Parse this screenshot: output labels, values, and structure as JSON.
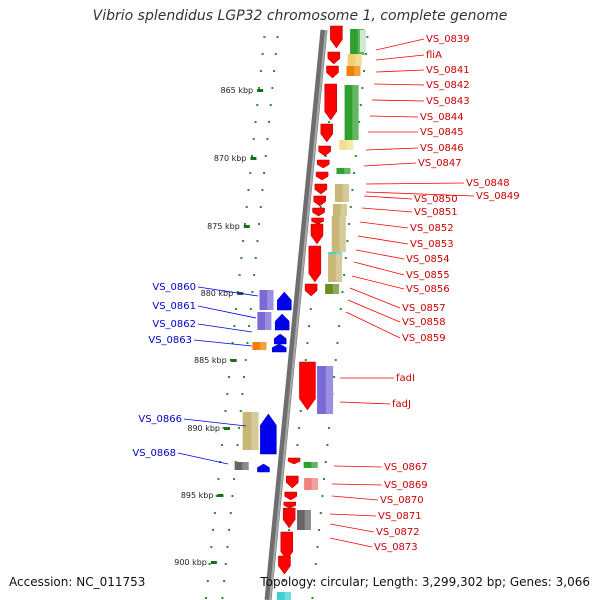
{
  "title": "Vibrio splendidus LGP32 chromosome 1, complete genome",
  "accession": "Accession: NC_011753",
  "topology": "Topology: circular; Length: 3,299,302 bp; Genes: 3,066",
  "ruler": [
    "865 kbp",
    "870 kbp",
    "875 kbp",
    "880 kbp",
    "885 kbp",
    "890 kbp",
    "895 kbp",
    "900 kbp"
  ],
  "right_labels": [
    "VS_0839",
    "fliA",
    "VS_0841",
    "VS_0842",
    "VS_0843",
    "VS_0844",
    "VS_0845",
    "VS_0846",
    "VS_0847",
    "VS_0848",
    "VS_0849",
    "VS_0850",
    "VS_0851",
    "VS_0852",
    "VS_0853",
    "VS_0854",
    "VS_0855",
    "VS_0856",
    "VS_0857",
    "VS_0858",
    "VS_0859",
    "fadI",
    "fadJ",
    "VS_0867",
    "VS_0869",
    "VS_0870",
    "VS_0871",
    "VS_0872",
    "VS_0873"
  ],
  "left_labels": [
    "VS_0860",
    "VS_0861",
    "VS_0862",
    "VS_0863",
    "VS_0866",
    "VS_0868"
  ],
  "colors": {
    "gene_red": "#ff0000",
    "gene_blue": "#0000ee",
    "green": "#2a9a2a",
    "khaki": "#c8b878",
    "purple": "#7a6ad8"
  }
}
